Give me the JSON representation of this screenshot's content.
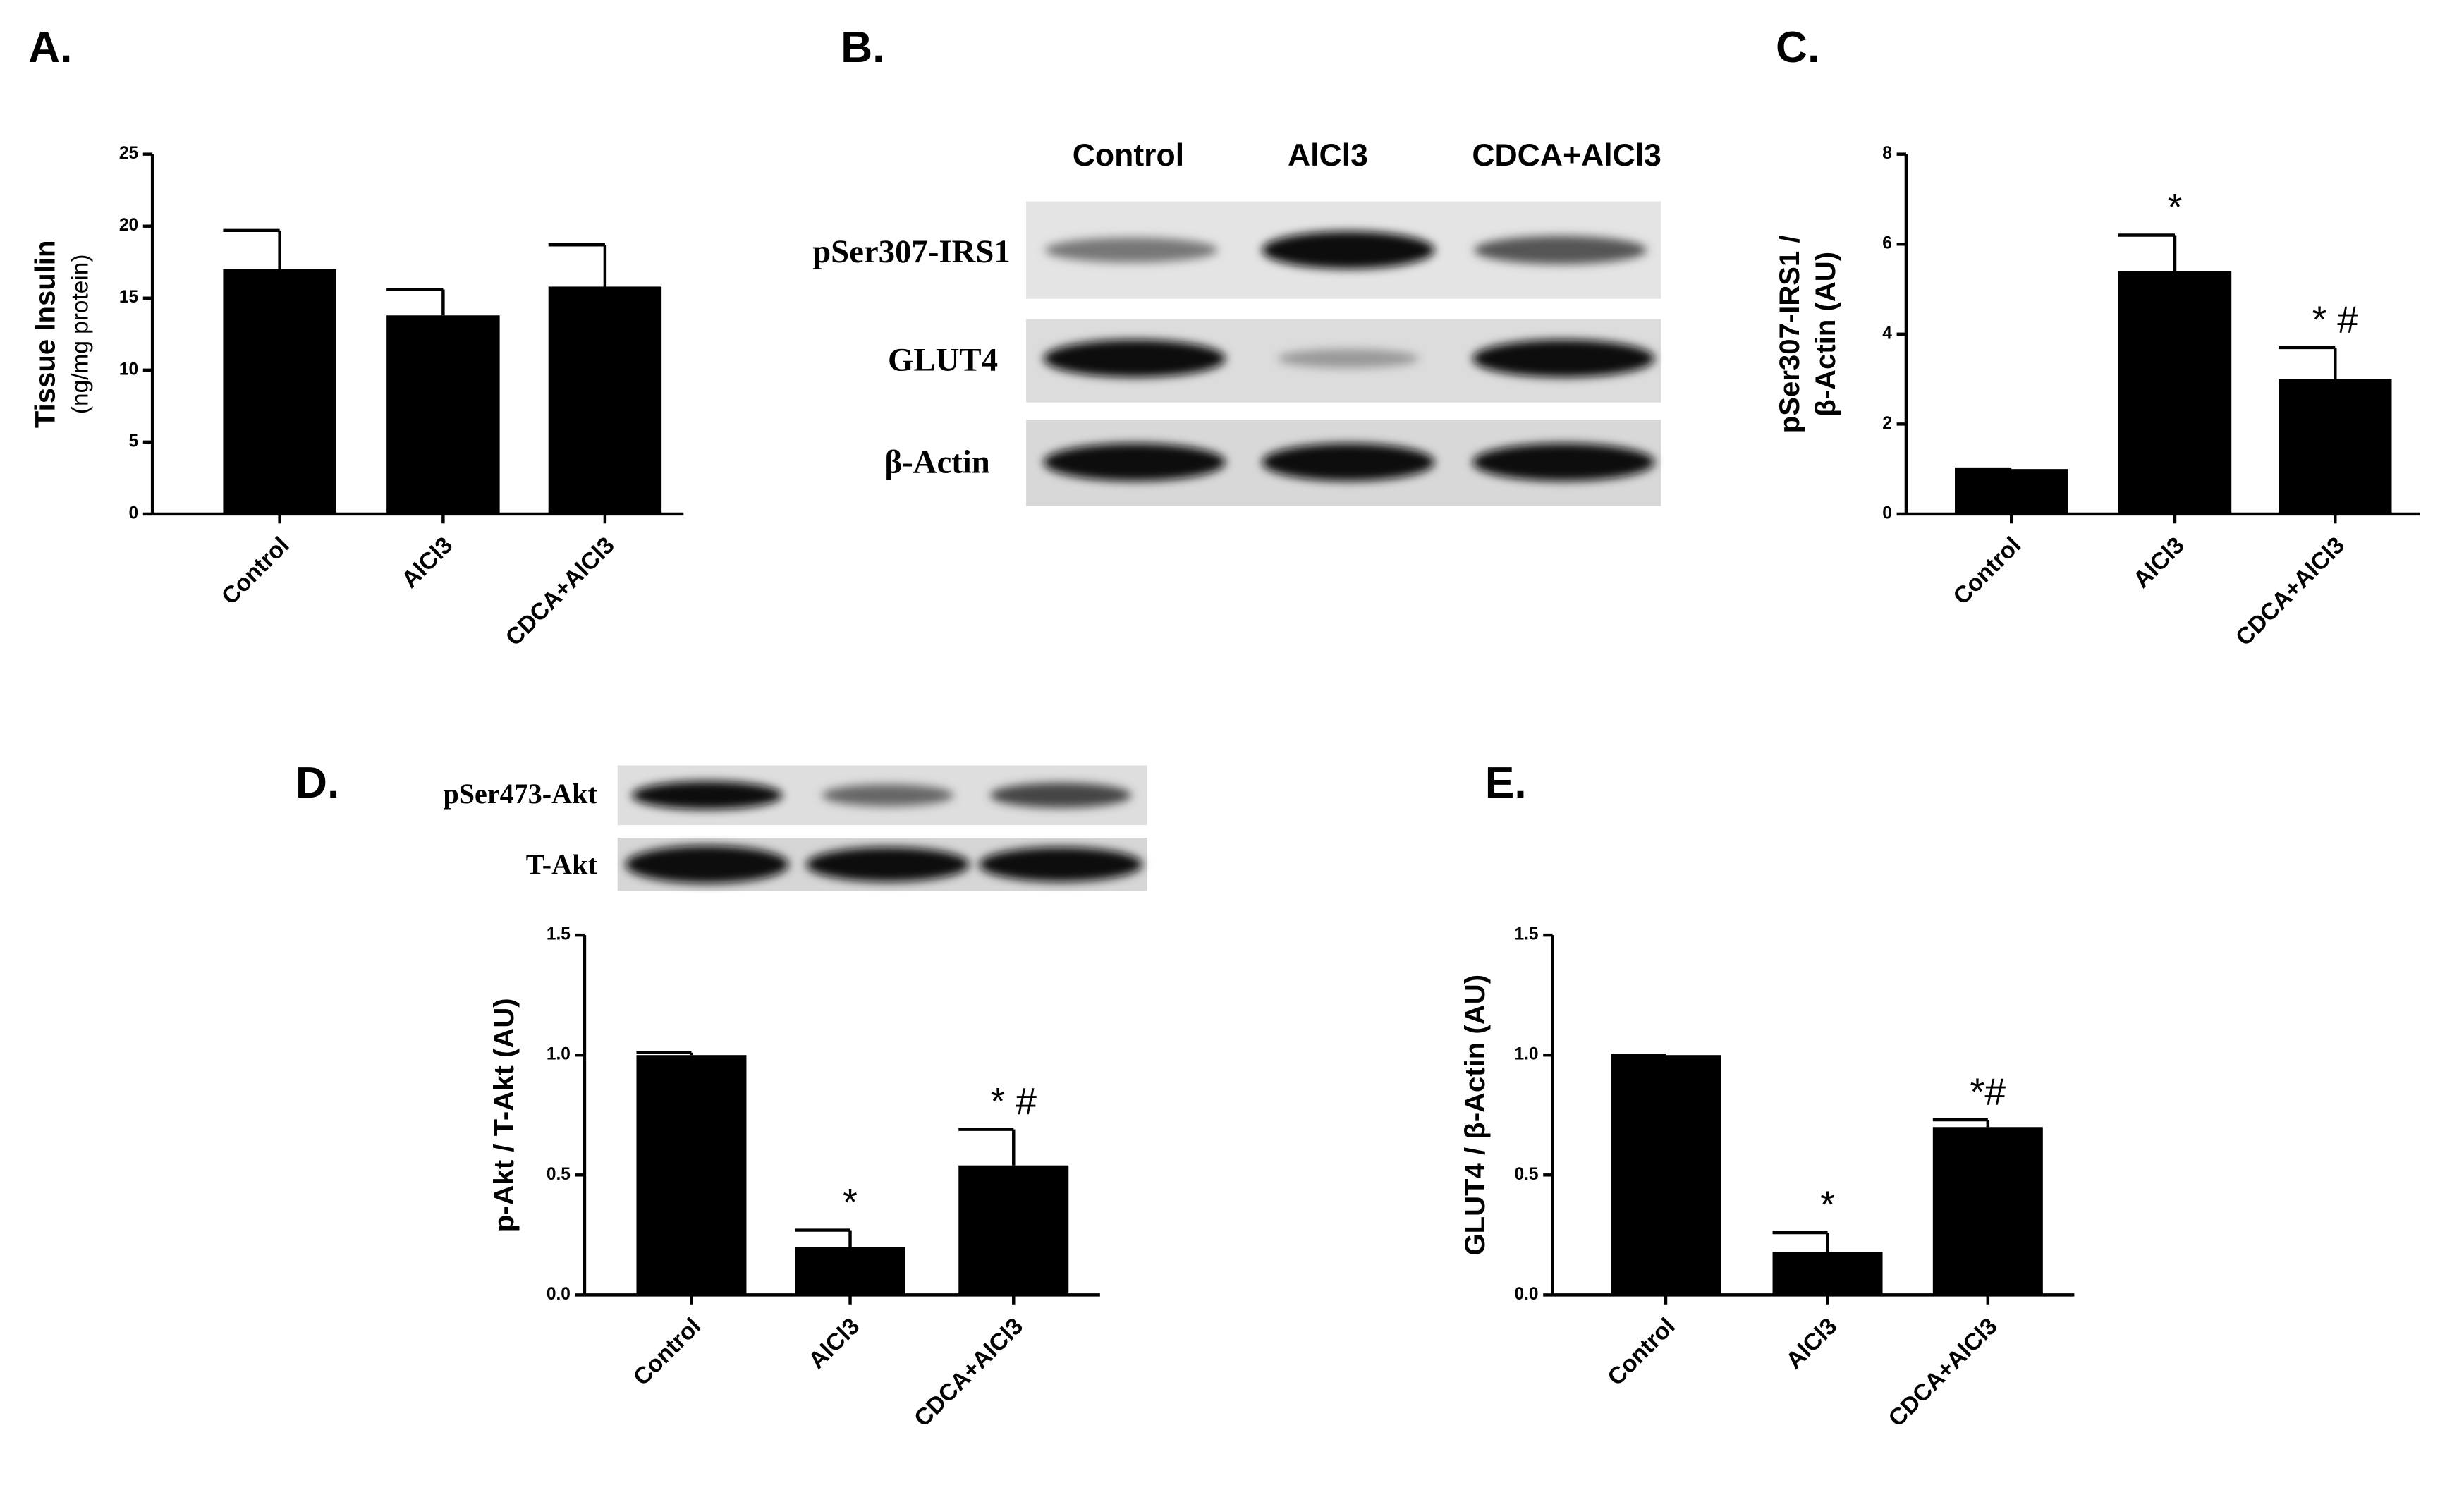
{
  "chart_data": [
    {
      "type": "bar",
      "panel": "A.",
      "ylabel": [
        "Tissue Insulin",
        "(ng/mg protein)"
      ],
      "categories": [
        "Control",
        "AlCl3",
        "CDCA+AlCl3"
      ],
      "values": [
        17,
        13.8,
        15.8
      ],
      "errors": [
        2.7,
        1.8,
        2.9
      ],
      "color": "#000000",
      "ylim": [
        0,
        25
      ],
      "yticks": [
        0,
        5,
        10,
        15,
        20,
        25
      ]
    },
    {
      "type": "bar",
      "panel": "C.",
      "ylabel": [
        "pSer307-IRS1 /",
        "β-Actin (AU)"
      ],
      "categories": [
        "Control",
        "AlCl3",
        "CDCA+AlCl3"
      ],
      "values": [
        1,
        5.4,
        3.0
      ],
      "errors": [
        0,
        0.8,
        0.7
      ],
      "annotations": [
        null,
        "*",
        "* #"
      ],
      "color": "#000000",
      "ylim": [
        0,
        8
      ],
      "yticks": [
        0,
        2,
        4,
        6,
        8
      ]
    },
    {
      "type": "bar",
      "panel": "D.",
      "ylabel": [
        "p-Akt / T-Akt (AU)"
      ],
      "categories": [
        "Control",
        "AlCl3",
        "CDCA+AlCl3"
      ],
      "values": [
        1.0,
        0.2,
        0.54
      ],
      "errors": [
        0.01,
        0.07,
        0.15
      ],
      "annotations": [
        null,
        "*",
        "* #"
      ],
      "color": "#000000",
      "ylim": [
        0,
        1.5
      ],
      "yticks": [
        {
          "value": 0,
          "label": "0.0"
        },
        {
          "value": 0.5,
          "label": "0.5"
        },
        {
          "value": 1,
          "label": "1.0"
        },
        {
          "value": 1.5,
          "label": "1.5"
        }
      ]
    },
    {
      "type": "bar",
      "panel": "E.",
      "ylabel": [
        "GLUT4 / β-Actin (AU)"
      ],
      "categories": [
        "Control",
        "AlCl3",
        "CDCA+AlCl3"
      ],
      "values": [
        1.0,
        0.18,
        0.7
      ],
      "errors": [
        0,
        0.08,
        0.03
      ],
      "annotations": [
        null,
        "*",
        "*#"
      ],
      "color": "#000000",
      "ylim": [
        0,
        1.5
      ],
      "yticks": [
        {
          "value": 0,
          "label": "0.0"
        },
        {
          "value": 0.5,
          "label": "0.5"
        },
        {
          "value": 1,
          "label": "1.0"
        },
        {
          "value": 1.5,
          "label": "1.5"
        }
      ]
    }
  ],
  "blots": [
    {
      "panel": "B.",
      "lanes": [
        "Control",
        "AlCl3",
        "CDCA+AlCl3"
      ],
      "rows": [
        "pSer307-IRS1",
        "GLUT4",
        "β-Actin"
      ]
    },
    {
      "rows": [
        "pSer473-Akt",
        "T-Akt"
      ]
    }
  ]
}
